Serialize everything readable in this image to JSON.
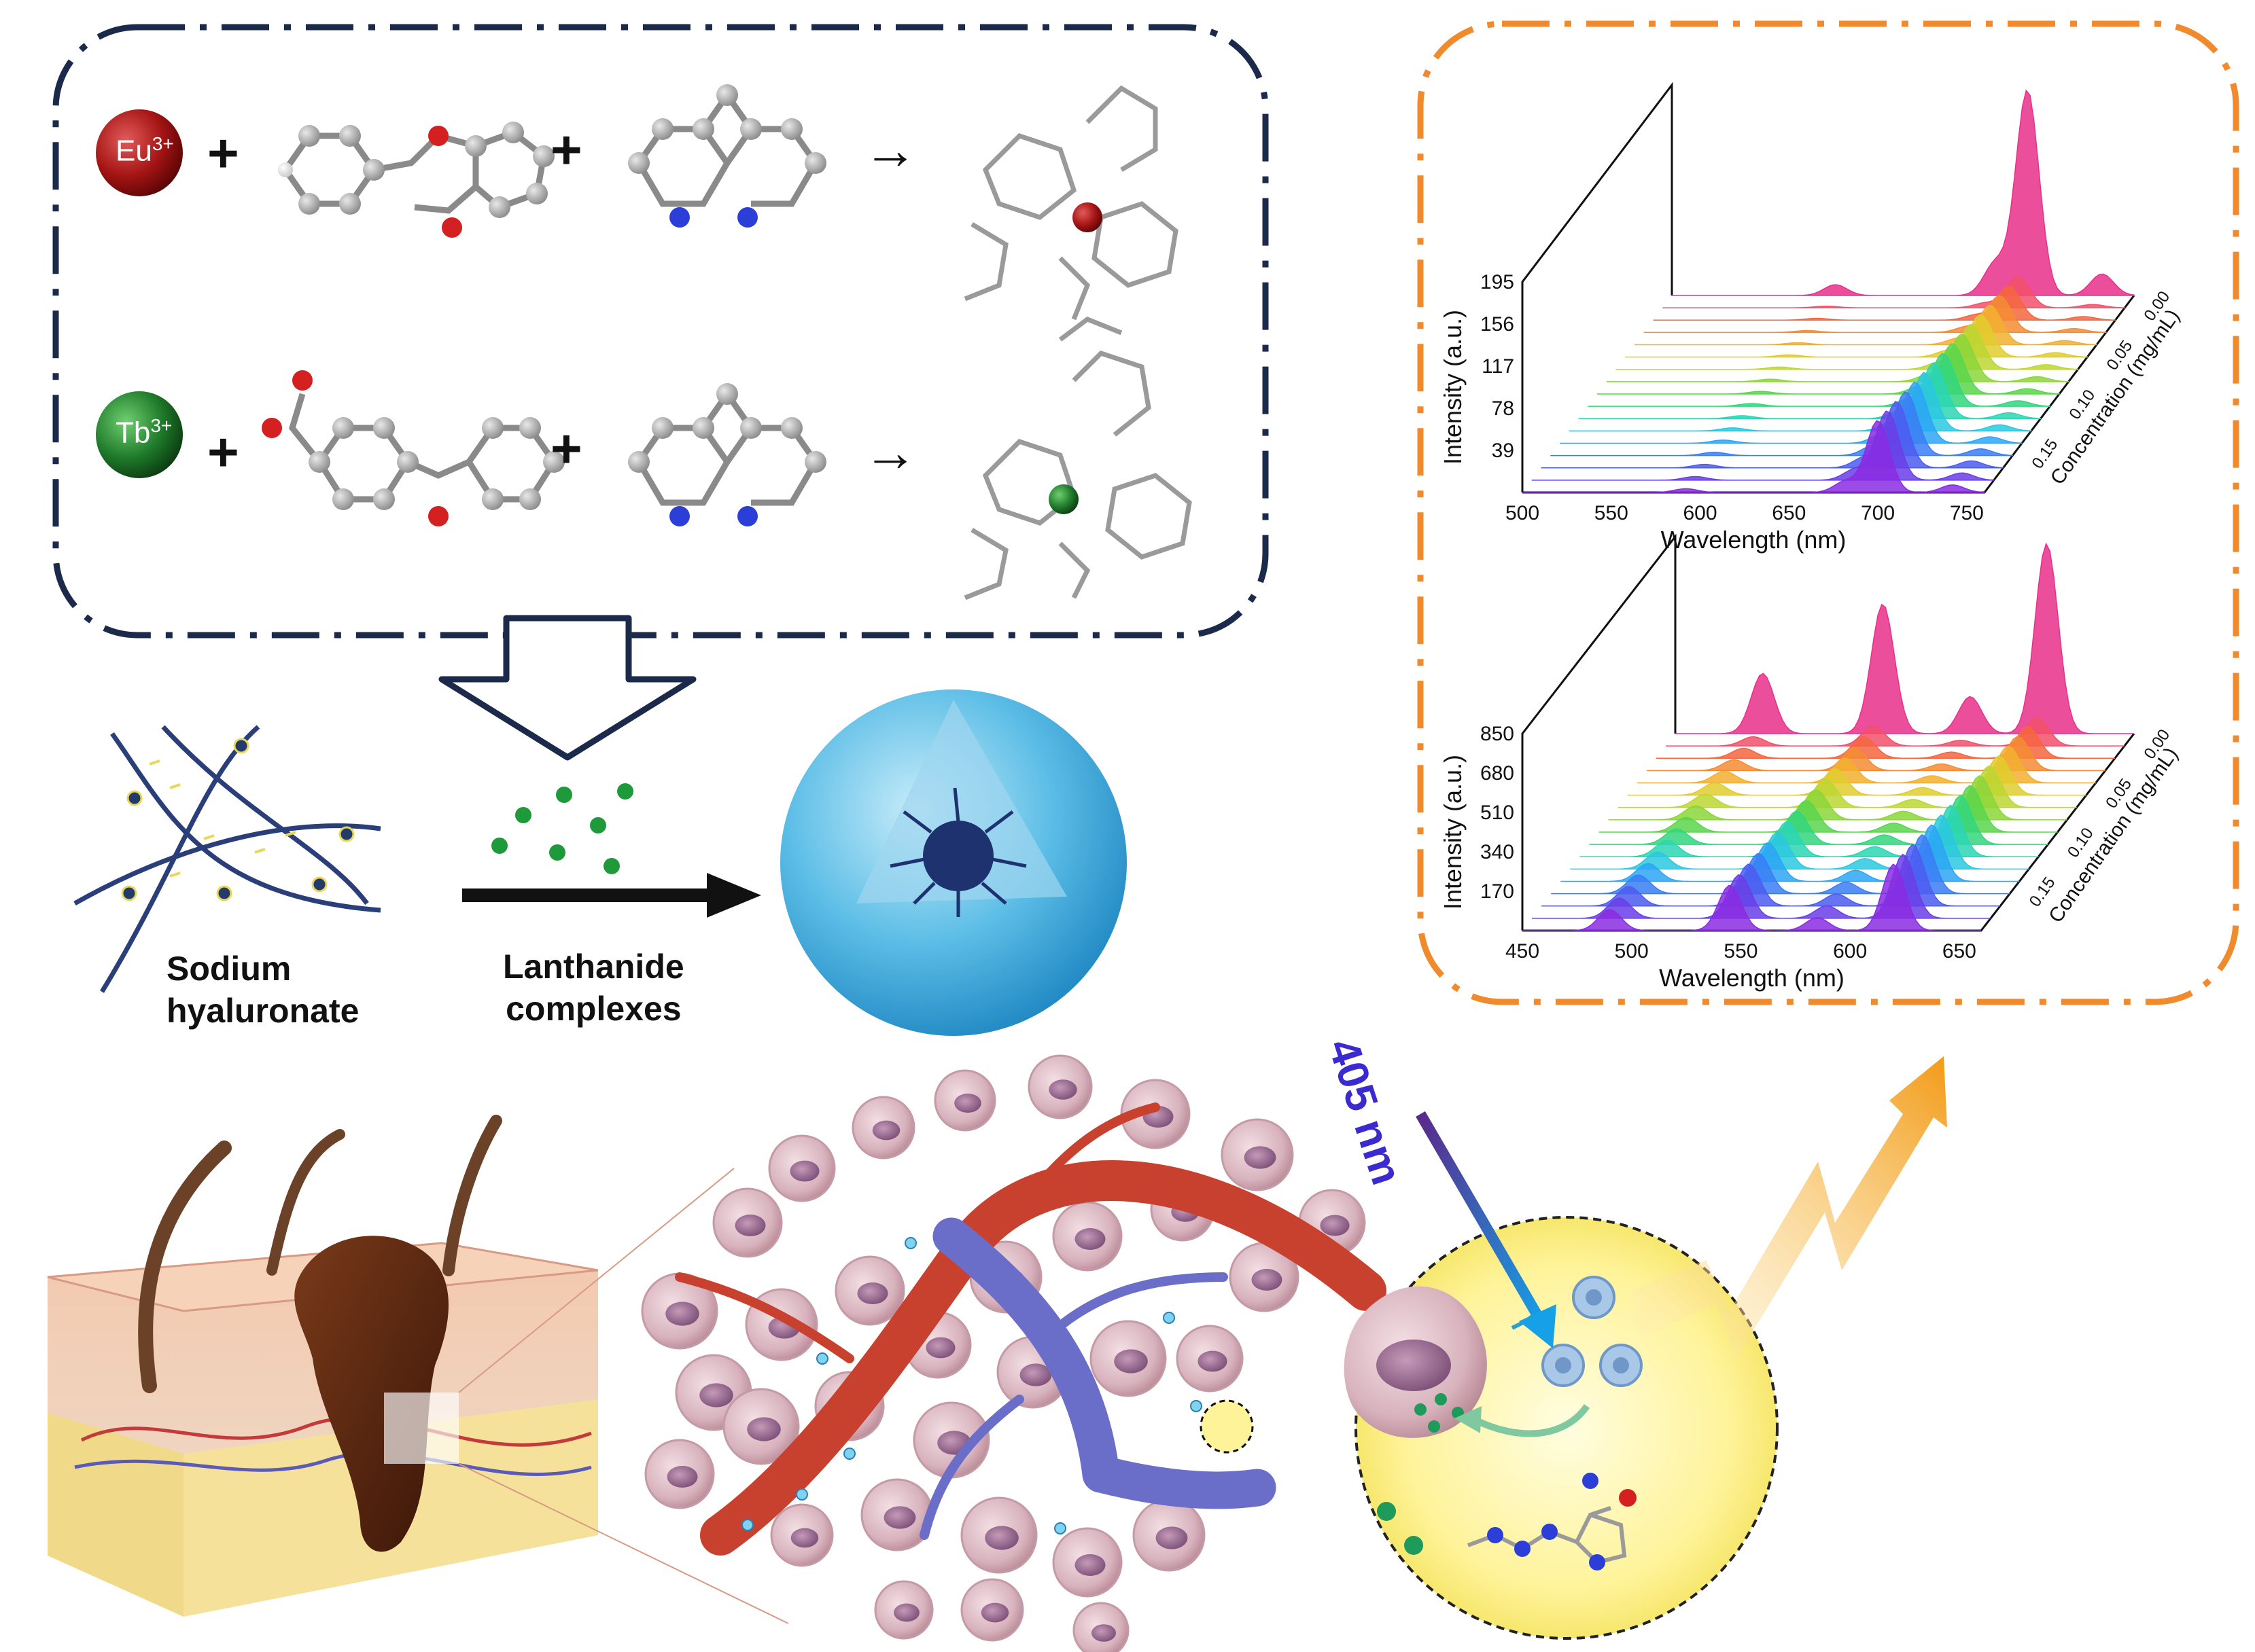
{
  "ions": [
    {
      "symbol": "Eu",
      "charge": "3+",
      "color": "#9b1010"
    },
    {
      "symbol": "Tb",
      "charge": "3+",
      "color": "#1f6b2a"
    }
  ],
  "operators": {
    "plus": "+",
    "arrow": "→"
  },
  "labels": {
    "sodium": [
      "Sodium",
      "hyaluronate"
    ],
    "lanthanide": [
      "Lanthanide",
      "complexes"
    ],
    "excitation": "405 nm"
  },
  "colors": {
    "synthesis_border": "#1b2a4a",
    "spectra_border": "#f08a2c",
    "eu_emission": "#e8308a",
    "tb_emission": "#e8308a",
    "nanoparticle": "#4fb8e8"
  },
  "chart_data": [
    {
      "type": "area",
      "subtype": "waterfall-3d",
      "xlabel": "Wavelength (nm)",
      "ylabel": "Intensity (a.u.)",
      "zlabel": "Concentration (mg/mL)",
      "x_ticks": [
        "500",
        "550",
        "600",
        "650",
        "700",
        "750"
      ],
      "y_ticks": [
        "39",
        "78",
        "117",
        "156",
        "195"
      ],
      "z_ticks": [
        "0.00",
        "0.05",
        "0.10",
        "0.15"
      ],
      "xlim": [
        500,
        760
      ],
      "ylim": [
        0,
        195
      ],
      "z_values": [
        0.0,
        0.05,
        0.1,
        0.15
      ],
      "peaks": [
        {
          "x": 592,
          "y": 10
        },
        {
          "x": 682,
          "y": 30
        },
        {
          "x": 700,
          "y": 190
        },
        {
          "x": 742,
          "y": 20
        }
      ]
    },
    {
      "type": "area",
      "subtype": "waterfall-3d",
      "xlabel": "Wavelength (nm)",
      "ylabel": "Intensity (a.u.)",
      "zlabel": "Concentration (mg/mL)",
      "x_ticks": [
        "450",
        "500",
        "550",
        "600",
        "650"
      ],
      "y_ticks": [
        "170",
        "340",
        "510",
        "680",
        "850"
      ],
      "z_ticks": [
        "0.00",
        "0.05",
        "0.10",
        "0.15"
      ],
      "xlim": [
        450,
        660
      ],
      "ylim": [
        0,
        850
      ],
      "z_values": [
        0.0,
        0.05,
        0.1,
        0.15
      ],
      "peaks": [
        {
          "x": 490,
          "y": 260
        },
        {
          "x": 545,
          "y": 560
        },
        {
          "x": 585,
          "y": 160
        },
        {
          "x": 620,
          "y": 820
        }
      ]
    }
  ]
}
